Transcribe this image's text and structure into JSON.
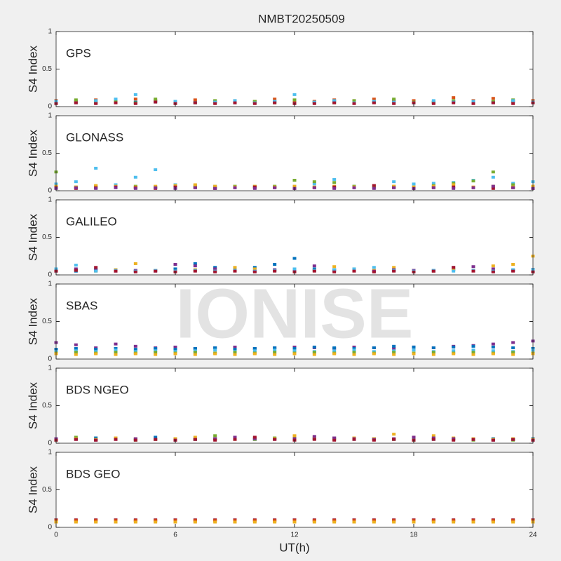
{
  "title": "NMBT20250509",
  "xlabel": "UT(h)",
  "watermark": "IONISE",
  "chart_data": [
    {
      "type": "scatter",
      "label": "GPS",
      "ylabel": "S4 Index",
      "xlim": [
        0,
        24
      ],
      "ylim": [
        0,
        1
      ],
      "yticks": [
        0,
        0.5,
        1
      ],
      "xticks": [
        0,
        6,
        12,
        18,
        24
      ],
      "x": [
        0,
        1,
        2,
        3,
        4,
        5,
        6,
        7,
        8,
        9,
        10,
        11,
        12,
        13,
        14,
        15,
        16,
        17,
        18,
        19,
        20,
        21,
        22,
        23,
        24
      ],
      "series": [
        {
          "color": "#0072BD",
          "values": [
            0.06,
            0.07,
            0.05,
            0.08,
            0.06,
            0.07,
            0.05,
            0.06,
            0.07,
            0.05,
            0.06,
            0.07,
            0.05,
            0.06,
            0.07,
            0.05,
            0.06,
            0.08,
            0.05,
            0.06,
            0.07,
            0.05,
            0.06,
            0.07,
            0.06
          ]
        },
        {
          "color": "#D95319",
          "values": [
            0.08,
            0.06,
            0.09,
            0.07,
            0.1,
            0.08,
            0.07,
            0.09,
            0.06,
            0.08,
            0.07,
            0.1,
            0.08,
            0.07,
            0.09,
            0.08,
            0.1,
            0.07,
            0.08,
            0.06,
            0.12,
            0.08,
            0.11,
            0.07,
            0.08
          ]
        },
        {
          "color": "#77AC30",
          "values": [
            0.05,
            0.09,
            0.06,
            0.07,
            0.05,
            0.1,
            0.06,
            0.05,
            0.08,
            0.06,
            0.07,
            0.05,
            0.09,
            0.06,
            0.05,
            0.08,
            0.06,
            0.1,
            0.06,
            0.05,
            0.08,
            0.06,
            0.07,
            0.09,
            0.06
          ]
        },
        {
          "color": "#4DBEEE",
          "values": [
            0.07,
            0.05,
            0.08,
            0.1,
            0.16,
            0.06,
            0.07,
            0.05,
            0.06,
            0.08,
            0.05,
            0.07,
            0.16,
            0.06,
            0.08,
            0.05,
            0.07,
            0.06,
            0.05,
            0.08,
            0.06,
            0.07,
            0.05,
            0.08,
            0.06
          ]
        },
        {
          "color": "#A2142F",
          "values": [
            0.04,
            0.05,
            0.04,
            0.05,
            0.04,
            0.06,
            0.04,
            0.05,
            0.04,
            0.05,
            0.04,
            0.05,
            0.04,
            0.04,
            0.05,
            0.04,
            0.05,
            0.04,
            0.05,
            0.04,
            0.05,
            0.04,
            0.05,
            0.04,
            0.05
          ]
        }
      ]
    },
    {
      "type": "scatter",
      "label": "GLONASS",
      "ylabel": "S4 Index",
      "xlim": [
        0,
        24
      ],
      "ylim": [
        0,
        1
      ],
      "yticks": [
        0,
        0.5,
        1
      ],
      "xticks": [
        0,
        6,
        12,
        18,
        24
      ],
      "x": [
        0,
        1,
        2,
        3,
        4,
        5,
        6,
        7,
        8,
        9,
        10,
        11,
        12,
        13,
        14,
        15,
        16,
        17,
        18,
        19,
        20,
        21,
        22,
        23,
        24
      ],
      "series": [
        {
          "color": "#4DBEEE",
          "values": [
            0.09,
            0.12,
            0.3,
            0.08,
            0.18,
            0.28,
            0.08,
            0.07,
            0.06,
            0.05,
            0.06,
            0.05,
            0.06,
            0.09,
            0.15,
            0.06,
            0.05,
            0.12,
            0.09,
            0.1,
            0.11,
            0.14,
            0.18,
            0.1,
            0.12
          ]
        },
        {
          "color": "#77AC30",
          "values": [
            0.25,
            0.05,
            0.06,
            0.05,
            0.06,
            0.05,
            0.07,
            0.06,
            0.05,
            0.06,
            0.05,
            0.06,
            0.14,
            0.12,
            0.11,
            0.06,
            0.05,
            0.06,
            0.05,
            0.07,
            0.1,
            0.13,
            0.25,
            0.08,
            0.06
          ]
        },
        {
          "color": "#EDB120",
          "values": [
            0.06,
            0.05,
            0.07,
            0.06,
            0.05,
            0.06,
            0.07,
            0.08,
            0.06,
            0.05,
            0.06,
            0.05,
            0.06,
            0.05,
            0.06,
            0.05,
            0.07,
            0.06,
            0.05,
            0.06,
            0.08,
            0.05,
            0.06,
            0.05,
            0.06
          ]
        },
        {
          "color": "#A2142F",
          "values": [
            0.04,
            0.03,
            0.04,
            0.05,
            0.04,
            0.03,
            0.05,
            0.04,
            0.03,
            0.04,
            0.05,
            0.04,
            0.03,
            0.04,
            0.05,
            0.04,
            0.07,
            0.04,
            0.03,
            0.04,
            0.05,
            0.04,
            0.03,
            0.04,
            0.03
          ]
        },
        {
          "color": "#7E2F8E",
          "values": [
            0.03,
            0.04,
            0.03,
            0.04,
            0.03,
            0.04,
            0.03,
            0.04,
            0.03,
            0.04,
            0.03,
            0.04,
            0.03,
            0.04,
            0.03,
            0.04,
            0.03,
            0.04,
            0.03,
            0.04,
            0.03,
            0.04,
            0.06,
            0.04,
            0.03
          ]
        }
      ]
    },
    {
      "type": "scatter",
      "label": "GALILEO",
      "ylabel": "S4 Index",
      "xlim": [
        0,
        24
      ],
      "ylim": [
        0,
        1
      ],
      "yticks": [
        0,
        0.5,
        1
      ],
      "xticks": [
        0,
        6,
        12,
        18,
        24
      ],
      "x": [
        0,
        1,
        2,
        3,
        4,
        5,
        6,
        7,
        8,
        9,
        10,
        11,
        12,
        13,
        14,
        15,
        16,
        17,
        18,
        19,
        20,
        21,
        22,
        23,
        24
      ],
      "series": [
        {
          "color": "#0072BD",
          "values": [
            0.06,
            0.05,
            0.07,
            0.06,
            0.05,
            0.06,
            0.08,
            0.15,
            0.1,
            0.08,
            0.1,
            0.14,
            0.22,
            0.08,
            0.06,
            0.07,
            0.05,
            0.06,
            0.05,
            0.06,
            0.07,
            0.06,
            0.05,
            0.06,
            0.07
          ]
        },
        {
          "color": "#EDB120",
          "values": [
            0.07,
            0.06,
            0.05,
            0.07,
            0.15,
            0.06,
            0.05,
            0.07,
            0.06,
            0.1,
            0.08,
            0.06,
            0.07,
            0.06,
            0.11,
            0.08,
            0.06,
            0.1,
            0.06,
            0.05,
            0.07,
            0.06,
            0.12,
            0.14,
            0.25
          ]
        },
        {
          "color": "#7E2F8E",
          "values": [
            0.05,
            0.08,
            0.06,
            0.05,
            0.06,
            0.05,
            0.14,
            0.12,
            0.08,
            0.06,
            0.05,
            0.07,
            0.06,
            0.12,
            0.07,
            0.06,
            0.05,
            0.07,
            0.06,
            0.05,
            0.1,
            0.11,
            0.08,
            0.06,
            0.05
          ]
        },
        {
          "color": "#4DBEEE",
          "values": [
            0.08,
            0.13,
            0.05,
            0.06,
            0.05,
            0.06,
            0.05,
            0.06,
            0.05,
            0.06,
            0.05,
            0.06,
            0.08,
            0.06,
            0.07,
            0.08,
            0.1,
            0.06,
            0.05,
            0.06,
            0.05,
            0.06,
            0.05,
            0.07,
            0.06
          ]
        },
        {
          "color": "#A2142F",
          "values": [
            0.05,
            0.06,
            0.1,
            0.05,
            0.04,
            0.05,
            0.04,
            0.05,
            0.04,
            0.05,
            0.04,
            0.05,
            0.04,
            0.05,
            0.04,
            0.05,
            0.04,
            0.05,
            0.04,
            0.05,
            0.1,
            0.05,
            0.04,
            0.05,
            0.04
          ]
        }
      ]
    },
    {
      "type": "scatter",
      "label": "SBAS",
      "ylabel": "S4 Index",
      "xlim": [
        0,
        24
      ],
      "ylim": [
        0,
        1
      ],
      "yticks": [
        0,
        0.5,
        1
      ],
      "xticks": [
        0,
        6,
        12,
        18,
        24
      ],
      "x": [
        0,
        1,
        2,
        3,
        4,
        5,
        6,
        7,
        8,
        9,
        10,
        11,
        12,
        13,
        14,
        15,
        16,
        17,
        18,
        19,
        20,
        21,
        22,
        23,
        24
      ],
      "series": [
        {
          "color": "#7E2F8E",
          "values": [
            0.22,
            0.19,
            0.15,
            0.2,
            0.17,
            0.15,
            0.16,
            0.14,
            0.15,
            0.16,
            0.14,
            0.15,
            0.16,
            0.15,
            0.14,
            0.16,
            0.15,
            0.14,
            0.16,
            0.15,
            0.17,
            0.18,
            0.2,
            0.22,
            0.24
          ]
        },
        {
          "color": "#0072BD",
          "values": [
            0.13,
            0.14,
            0.13,
            0.14,
            0.13,
            0.14,
            0.13,
            0.14,
            0.15,
            0.13,
            0.14,
            0.15,
            0.14,
            0.16,
            0.15,
            0.14,
            0.15,
            0.17,
            0.16,
            0.15,
            0.16,
            0.17,
            0.16,
            0.15,
            0.14
          ]
        },
        {
          "color": "#4DBEEE",
          "values": [
            0.1,
            0.11,
            0.1,
            0.12,
            0.1,
            0.11,
            0.1,
            0.11,
            0.12,
            0.1,
            0.11,
            0.12,
            0.11,
            0.1,
            0.11,
            0.12,
            0.1,
            0.11,
            0.12,
            0.1,
            0.11,
            0.12,
            0.11,
            0.1,
            0.12
          ]
        },
        {
          "color": "#77AC30",
          "values": [
            0.08,
            0.09,
            0.08,
            0.09,
            0.08,
            0.09,
            0.08,
            0.09,
            0.08,
            0.09,
            0.08,
            0.09,
            0.08,
            0.09,
            0.08,
            0.09,
            0.08,
            0.09,
            0.08,
            0.09,
            0.08,
            0.09,
            0.08,
            0.09,
            0.08
          ]
        },
        {
          "color": "#EDB120",
          "values": [
            0.07,
            0.06,
            0.07,
            0.06,
            0.07,
            0.06,
            0.07,
            0.06,
            0.07,
            0.06,
            0.07,
            0.06,
            0.07,
            0.06,
            0.07,
            0.06,
            0.07,
            0.06,
            0.07,
            0.06,
            0.07,
            0.06,
            0.07,
            0.06,
            0.07
          ]
        }
      ]
    },
    {
      "type": "scatter",
      "label": "BDS NGEO",
      "ylabel": "S4 Index",
      "xlim": [
        0,
        24
      ],
      "ylim": [
        0,
        1
      ],
      "yticks": [
        0,
        0.5,
        1
      ],
      "xticks": [
        0,
        6,
        12,
        18,
        24
      ],
      "x": [
        0,
        1,
        2,
        3,
        4,
        5,
        6,
        7,
        8,
        9,
        10,
        11,
        12,
        13,
        14,
        15,
        16,
        17,
        18,
        19,
        20,
        21,
        22,
        23,
        24
      ],
      "series": [
        {
          "color": "#0072BD",
          "values": [
            0.05,
            0.06,
            0.07,
            0.06,
            0.05,
            0.08,
            0.06,
            0.05,
            0.06,
            0.07,
            0.05,
            0.06,
            0.05,
            0.06,
            0.07,
            0.05,
            0.06,
            0.05,
            0.06,
            0.05,
            0.06,
            0.05,
            0.06,
            0.05,
            0.06
          ]
        },
        {
          "color": "#77AC30",
          "values": [
            0.04,
            0.08,
            0.05,
            0.06,
            0.04,
            0.05,
            0.06,
            0.05,
            0.1,
            0.06,
            0.05,
            0.07,
            0.09,
            0.06,
            0.05,
            0.07,
            0.06,
            0.05,
            0.04,
            0.06,
            0.05,
            0.04,
            0.05,
            0.04,
            0.05
          ]
        },
        {
          "color": "#EDB120",
          "values": [
            0.05,
            0.06,
            0.05,
            0.07,
            0.06,
            0.05,
            0.06,
            0.08,
            0.06,
            0.05,
            0.07,
            0.06,
            0.1,
            0.08,
            0.06,
            0.07,
            0.06,
            0.12,
            0.08,
            0.1,
            0.07,
            0.06,
            0.05,
            0.06,
            0.05
          ]
        },
        {
          "color": "#7E2F8E",
          "values": [
            0.06,
            0.05,
            0.04,
            0.05,
            0.06,
            0.05,
            0.04,
            0.05,
            0.06,
            0.08,
            0.06,
            0.05,
            0.06,
            0.09,
            0.07,
            0.06,
            0.05,
            0.06,
            0.08,
            0.07,
            0.06,
            0.05,
            0.04,
            0.05,
            0.04
          ]
        },
        {
          "color": "#A2142F",
          "values": [
            0.04,
            0.05,
            0.04,
            0.05,
            0.04,
            0.05,
            0.04,
            0.05,
            0.04,
            0.05,
            0.08,
            0.05,
            0.04,
            0.05,
            0.04,
            0.05,
            0.04,
            0.05,
            0.04,
            0.05,
            0.04,
            0.05,
            0.04,
            0.05,
            0.04
          ]
        }
      ]
    },
    {
      "type": "scatter",
      "label": "BDS GEO",
      "ylabel": "S4 Index",
      "xlim": [
        0,
        24
      ],
      "ylim": [
        0,
        1
      ],
      "yticks": [
        0,
        0.5,
        1
      ],
      "xticks": [
        0,
        6,
        12,
        18,
        24
      ],
      "x": [
        0,
        1,
        2,
        3,
        4,
        5,
        6,
        7,
        8,
        9,
        10,
        11,
        12,
        13,
        14,
        15,
        16,
        17,
        18,
        19,
        20,
        21,
        22,
        23,
        24
      ],
      "series": [
        {
          "color": "#A2142F",
          "values": [
            0.1,
            0.1,
            0.1,
            0.1,
            0.1,
            0.1,
            0.1,
            0.1,
            0.1,
            0.1,
            0.1,
            0.1,
            0.1,
            0.1,
            0.1,
            0.1,
            0.1,
            0.1,
            0.1,
            0.1,
            0.1,
            0.1,
            0.1,
            0.1,
            0.1
          ]
        },
        {
          "color": "#D95319",
          "values": [
            0.09,
            0.09,
            0.09,
            0.09,
            0.09,
            0.09,
            0.09,
            0.09,
            0.09,
            0.09,
            0.09,
            0.09,
            0.09,
            0.09,
            0.09,
            0.09,
            0.09,
            0.09,
            0.09,
            0.09,
            0.09,
            0.09,
            0.09,
            0.09,
            0.09
          ]
        },
        {
          "color": "#EDB120",
          "values": [
            0.07,
            0.07,
            0.07,
            0.07,
            0.07,
            0.07,
            0.07,
            0.07,
            0.07,
            0.07,
            0.07,
            0.07,
            0.07,
            0.07,
            0.07,
            0.07,
            0.07,
            0.07,
            0.07,
            0.07,
            0.07,
            0.07,
            0.07,
            0.07,
            0.07
          ]
        }
      ]
    }
  ]
}
